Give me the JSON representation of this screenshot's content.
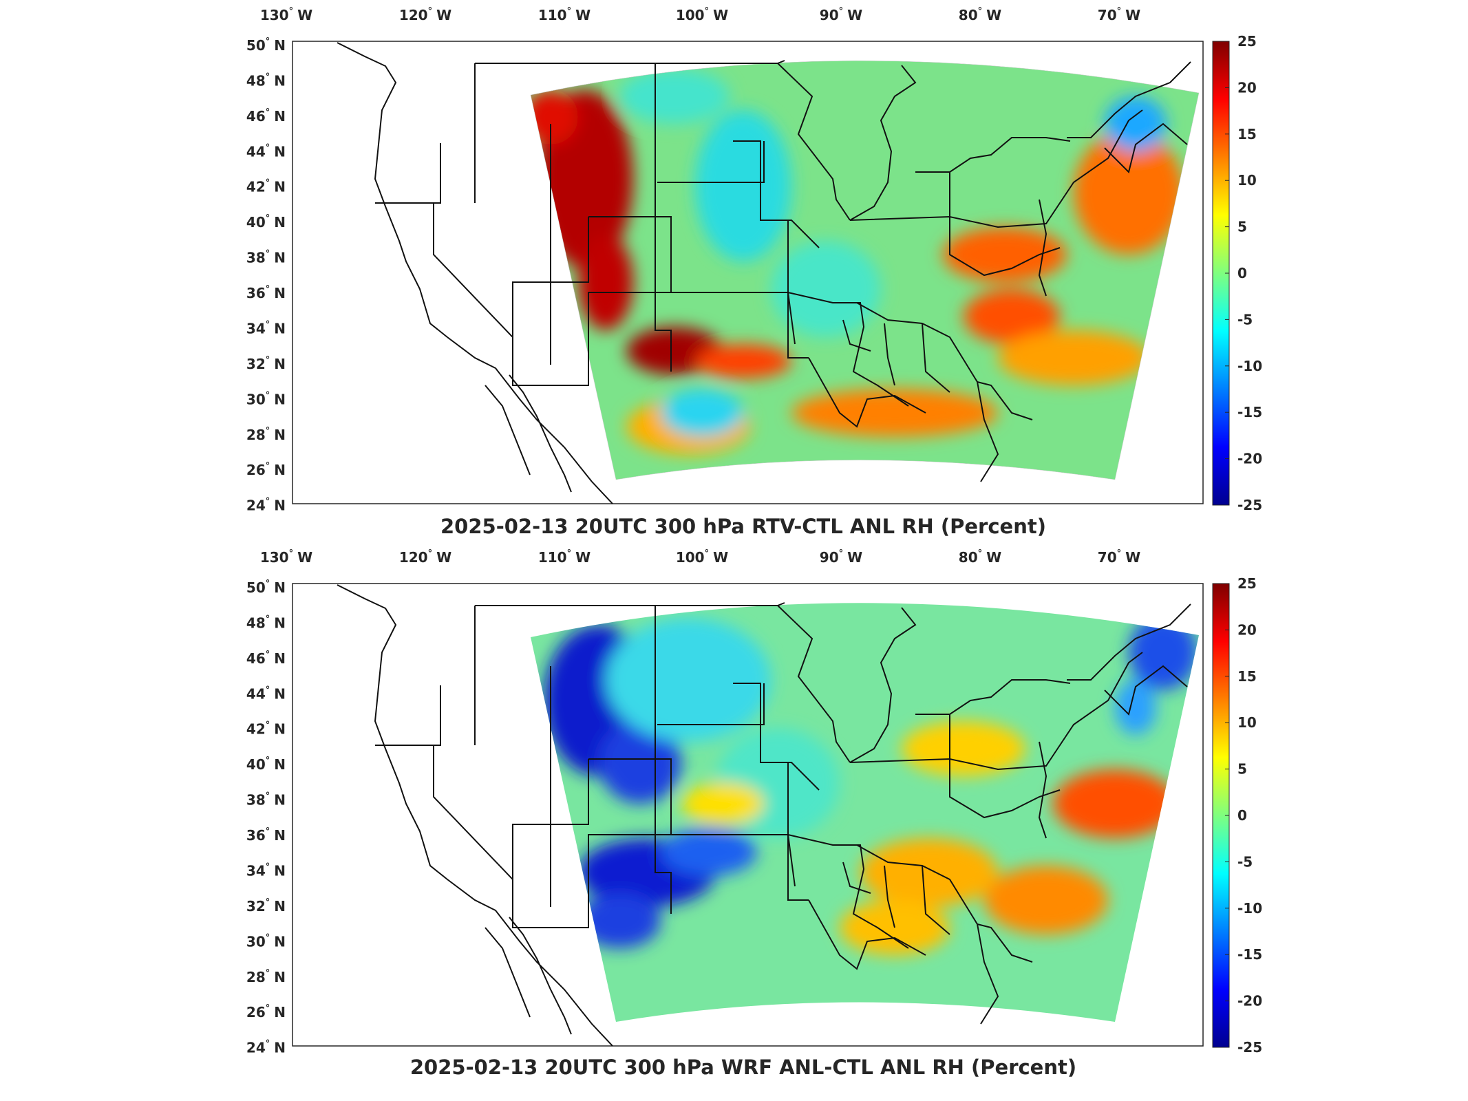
{
  "colormap": [
    "#00008f",
    "#0000ff",
    "#007fff",
    "#00ffff",
    "#7fff7f",
    "#ffff00",
    "#ff7f00",
    "#ff0000",
    "#7f0000"
  ],
  "panels": [
    {
      "title": "2025-02-13 20UTC 300 hPa RTV-CTL ANL RH (Percent)",
      "lon_ticks": [
        "130",
        "120",
        "110",
        "100",
        "90",
        "80",
        "70"
      ],
      "lon_suffix": "W",
      "lat_ticks": [
        "50",
        "48",
        "46",
        "44",
        "42",
        "40",
        "38",
        "36",
        "34",
        "32",
        "30",
        "28",
        "26",
        "24"
      ],
      "lat_suffix": "N",
      "colorbar_ticks": [
        "25",
        "20",
        "15",
        "10",
        "5",
        "0",
        "-5",
        "-10",
        "-15",
        "-20",
        "-25"
      ],
      "colorbar_range": [
        -25,
        25
      ],
      "anomalies": [
        {
          "region": "Oregon/Idaho/Wyoming/Utah west",
          "value": 22
        },
        {
          "region": "New Mexico/Texas panhandle",
          "value": 18
        },
        {
          "region": "Ohio valley to Virginia",
          "value": 14
        },
        {
          "region": "Atlantic offshore",
          "value": 10
        },
        {
          "region": "Gulf coast",
          "value": 12
        },
        {
          "region": "central plains",
          "value": -4
        },
        {
          "region": "New England",
          "value": -10
        }
      ]
    },
    {
      "title": "2025-02-13 20UTC 300 hPa WRF ANL-CTL ANL RH (Percent)",
      "lon_ticks": [
        "130",
        "120",
        "110",
        "100",
        "90",
        "80",
        "70"
      ],
      "lon_suffix": "W",
      "lat_ticks": [
        "50",
        "48",
        "46",
        "44",
        "42",
        "40",
        "38",
        "36",
        "34",
        "32",
        "30",
        "28",
        "26",
        "24"
      ],
      "lat_suffix": "N",
      "colorbar_ticks": [
        "25",
        "20",
        "15",
        "10",
        "5",
        "0",
        "-5",
        "-10",
        "-15",
        "-20",
        "-25"
      ],
      "colorbar_range": [
        -25,
        25
      ],
      "anomalies": [
        {
          "region": "Wyoming/Colorado",
          "value": -20
        },
        {
          "region": "west Texas/New Mexico",
          "value": -22
        },
        {
          "region": "Maine/New England",
          "value": -15
        },
        {
          "region": "Atlantic offshore",
          "value": 16
        },
        {
          "region": "southeast US",
          "value": 10
        },
        {
          "region": "plains",
          "value": -5
        }
      ]
    }
  ]
}
